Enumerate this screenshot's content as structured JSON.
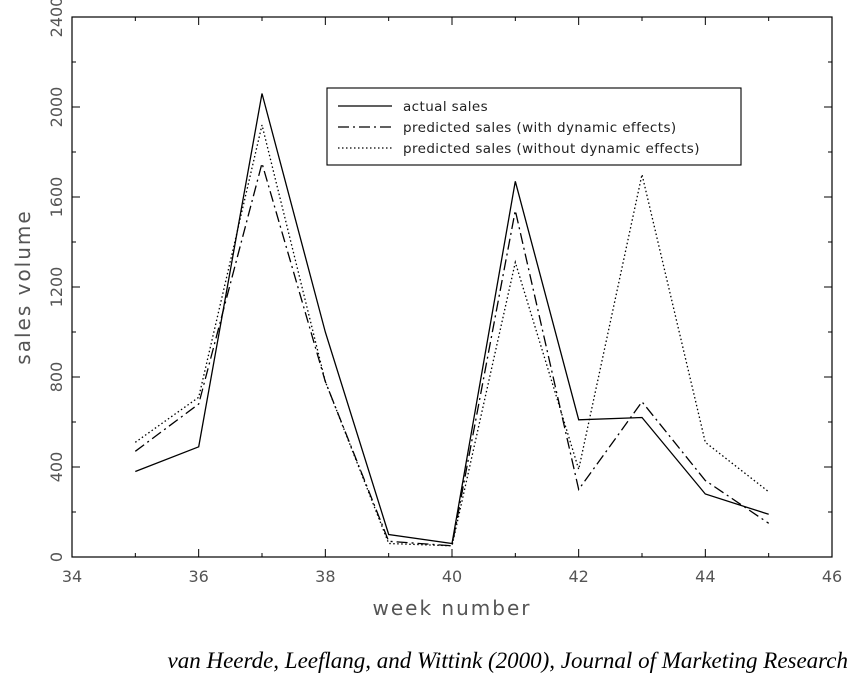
{
  "chart_data": {
    "type": "line",
    "xlabel": "week number",
    "ylabel": "sales volume",
    "xlim": [
      34,
      46
    ],
    "ylim": [
      0,
      2400
    ],
    "xticks": [
      34,
      36,
      38,
      40,
      42,
      44,
      46
    ],
    "yticks": [
      0,
      400,
      800,
      1200,
      1600,
      2000,
      2400
    ],
    "grid": false,
    "legend_position": "top-right",
    "series": [
      {
        "name": "actual sales",
        "style": "solid",
        "x": [
          35,
          36,
          37,
          38,
          39,
          40,
          41,
          42,
          43,
          44,
          45
        ],
        "y": [
          380,
          490,
          2060,
          1000,
          100,
          60,
          1670,
          610,
          620,
          280,
          190
        ]
      },
      {
        "name": "predicted sales (with dynamic effects)",
        "style": "dashdot",
        "x": [
          35,
          36,
          37,
          38,
          39,
          40,
          41,
          42,
          43,
          44,
          45
        ],
        "y": [
          470,
          680,
          1750,
          780,
          70,
          50,
          1540,
          300,
          690,
          340,
          150
        ]
      },
      {
        "name": "predicted sales (without dynamic effects)",
        "style": "dotted",
        "x": [
          35,
          36,
          37,
          38,
          39,
          40,
          41,
          42,
          43,
          44,
          45
        ],
        "y": [
          510,
          710,
          1920,
          780,
          60,
          50,
          1310,
          390,
          1700,
          510,
          290
        ]
      }
    ]
  },
  "caption": "van Heerde, Leeflang, and Wittink (2000), Journal of Marketing Research"
}
